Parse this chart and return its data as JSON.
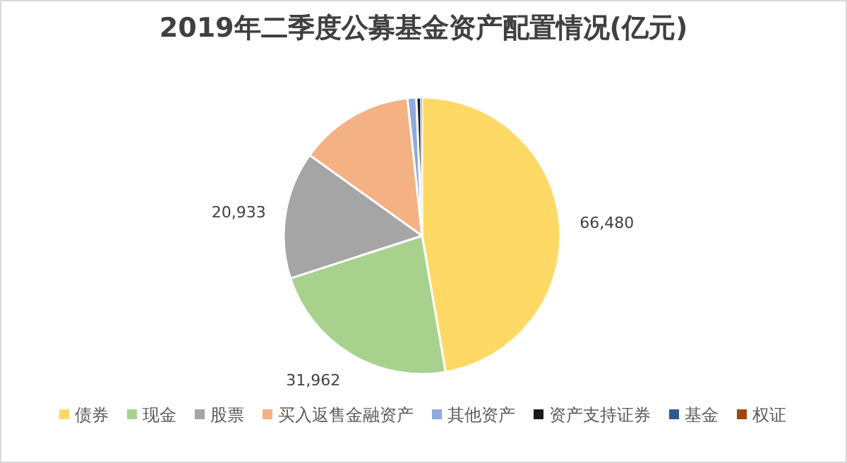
{
  "chart_data": {
    "type": "pie",
    "title": "2019年二季度公募基金资产配置情况(亿元)",
    "categories": [
      "债券",
      "现金",
      "股票",
      "买入返售金融资产",
      "其他资产",
      "资产支持证券",
      "基金",
      "权证"
    ],
    "values": [
      66480,
      31962,
      20933,
      18850,
      1450,
      780,
      150,
      null
    ],
    "colors": [
      "#ffd966",
      "#a9d18e",
      "#a5a5a5",
      "#f4b183",
      "#8faadc",
      "#1a1a1a",
      "#2e5a8f",
      "#9e480e"
    ],
    "value_labels": [
      "66,480",
      "31,962",
      "20,933",
      null,
      null,
      null,
      null,
      null
    ],
    "legend": "bottom"
  }
}
